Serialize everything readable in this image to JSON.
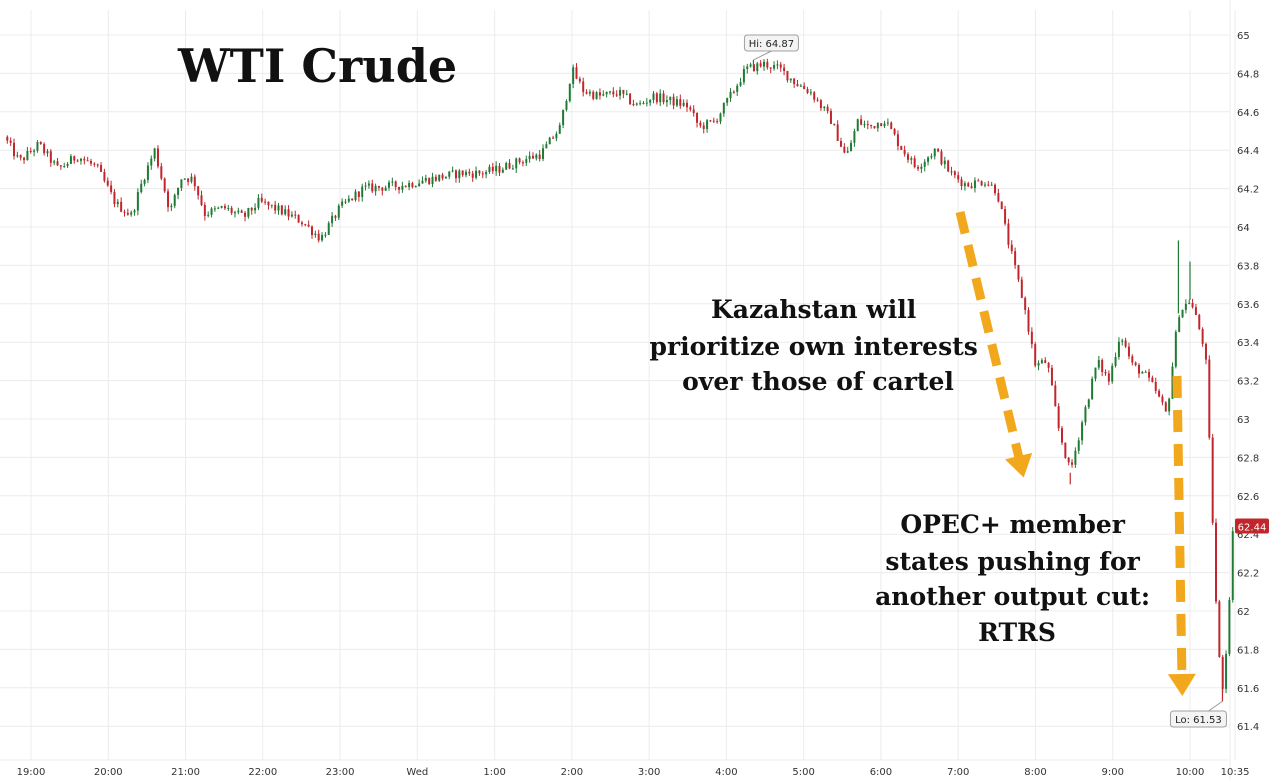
{
  "chart_data": {
    "type": "candlestick",
    "title": "WTI Crude",
    "y_range": [
      61.3,
      65.1
    ],
    "y_ticks": [
      61.4,
      61.6,
      61.8,
      62,
      62.2,
      62.4,
      62.6,
      62.8,
      63,
      63.2,
      63.4,
      63.6,
      63.8,
      64,
      64.2,
      64.4,
      64.6,
      64.8,
      65
    ],
    "y_tick_labels": [
      "61.4",
      "61.6",
      "61.8",
      "62",
      "62.2",
      "62.4",
      "62.6",
      "62.8",
      "63",
      "63.2",
      "63.4",
      "63.6",
      "63.8",
      "64",
      "64.2",
      "64.4",
      "64.6",
      "64.8",
      "65"
    ],
    "x_ticks": [
      "19:00",
      "20:00",
      "21:00",
      "22:00",
      "23:00",
      "Wed",
      "1:00",
      "2:00",
      "3:00",
      "4:00",
      "5:00",
      "6:00",
      "7:00",
      "8:00",
      "9:00",
      "10:00",
      "10:35"
    ],
    "x_tick_hours": [
      0,
      1,
      2,
      3,
      4,
      5,
      6,
      7,
      8,
      9,
      10,
      11,
      12,
      13,
      14,
      15,
      15.583
    ],
    "x_range_hours": [
      -0.35,
      15.6
    ],
    "price_path": [
      [
        -0.35,
        64.47
      ],
      [
        -0.15,
        64.34
      ],
      [
        0.1,
        64.43
      ],
      [
        0.35,
        64.3
      ],
      [
        0.6,
        64.37
      ],
      [
        0.85,
        64.31
      ],
      [
        1.1,
        64.12
      ],
      [
        1.3,
        64.06
      ],
      [
        1.45,
        64.25
      ],
      [
        1.6,
        64.4
      ],
      [
        1.8,
        64.08
      ],
      [
        1.95,
        64.26
      ],
      [
        2.1,
        64.25
      ],
      [
        2.25,
        64.07
      ],
      [
        2.5,
        64.1
      ],
      [
        2.75,
        64.05
      ],
      [
        2.95,
        64.13
      ],
      [
        3.2,
        64.09
      ],
      [
        3.5,
        64.03
      ],
      [
        3.75,
        63.94
      ],
      [
        4.0,
        64.1
      ],
      [
        4.3,
        64.2
      ],
      [
        4.6,
        64.21
      ],
      [
        4.85,
        64.22
      ],
      [
        5.05,
        64.24
      ],
      [
        5.3,
        64.26
      ],
      [
        5.55,
        64.28
      ],
      [
        5.8,
        64.28
      ],
      [
        6.05,
        64.3
      ],
      [
        6.3,
        64.34
      ],
      [
        6.6,
        64.38
      ],
      [
        6.85,
        64.52
      ],
      [
        7.0,
        64.82
      ],
      [
        7.15,
        64.71
      ],
      [
        7.35,
        64.68
      ],
      [
        7.6,
        64.7
      ],
      [
        7.85,
        64.63
      ],
      [
        8.05,
        64.68
      ],
      [
        8.25,
        64.66
      ],
      [
        8.5,
        64.63
      ],
      [
        8.65,
        64.52
      ],
      [
        8.85,
        64.55
      ],
      [
        9.05,
        64.68
      ],
      [
        9.25,
        64.82
      ],
      [
        9.5,
        64.85
      ],
      [
        9.7,
        64.82
      ],
      [
        9.9,
        64.75
      ],
      [
        10.1,
        64.7
      ],
      [
        10.35,
        64.56
      ],
      [
        10.55,
        64.36
      ],
      [
        10.7,
        64.55
      ],
      [
        10.85,
        64.52
      ],
      [
        11.05,
        64.56
      ],
      [
        11.25,
        64.42
      ],
      [
        11.45,
        64.31
      ],
      [
        11.7,
        64.4
      ],
      [
        11.9,
        64.28
      ],
      [
        12.1,
        64.22
      ],
      [
        12.35,
        64.24
      ],
      [
        12.5,
        64.19
      ],
      [
        12.65,
        63.92
      ],
      [
        12.85,
        63.6
      ],
      [
        13.0,
        63.28
      ],
      [
        13.15,
        63.3
      ],
      [
        13.3,
        62.95
      ],
      [
        13.45,
        62.72
      ],
      [
        13.6,
        62.98
      ],
      [
        13.8,
        63.3
      ],
      [
        13.95,
        63.2
      ],
      [
        14.1,
        63.45
      ],
      [
        14.25,
        63.28
      ],
      [
        14.4,
        63.24
      ],
      [
        14.55,
        63.15
      ],
      [
        14.7,
        63.02
      ],
      [
        14.85,
        63.55
      ],
      [
        15.0,
        63.62
      ],
      [
        15.1,
        63.5
      ],
      [
        15.2,
        63.35
      ],
      [
        15.28,
        62.6
      ],
      [
        15.36,
        61.82
      ],
      [
        15.42,
        61.6
      ],
      [
        15.47,
        61.8
      ],
      [
        15.52,
        62.15
      ],
      [
        15.56,
        62.45
      ],
      [
        15.583,
        62.44
      ]
    ],
    "spikes": [
      {
        "t": 14.85,
        "v": 63.93
      },
      {
        "t": 15.0,
        "v": 63.82
      },
      {
        "t": 13.45,
        "v": 62.66
      },
      {
        "t": 15.42,
        "v": 61.53
      },
      {
        "t": 9.35,
        "v": 64.87
      }
    ],
    "annotations": {
      "high": {
        "label": "Hi: 64.87",
        "value": 64.87,
        "t": 9.35
      },
      "low": {
        "label": "Lo: 61.53",
        "value": 61.53,
        "t": 15.42
      },
      "last": {
        "label": "62.44",
        "value": 62.44
      },
      "kazakhstan": [
        "Kazahstan will",
        "prioritize own interests",
        "over those of cartel"
      ],
      "opec": [
        "OPEC+ member",
        "states pushing for",
        "another output cut:",
        "RTRS"
      ]
    },
    "colors": {
      "up": "#1f7a33",
      "down": "#c0262b",
      "arrow": "#f2a81d",
      "last_badge": "#c0262b",
      "grid": "#ececec"
    }
  }
}
